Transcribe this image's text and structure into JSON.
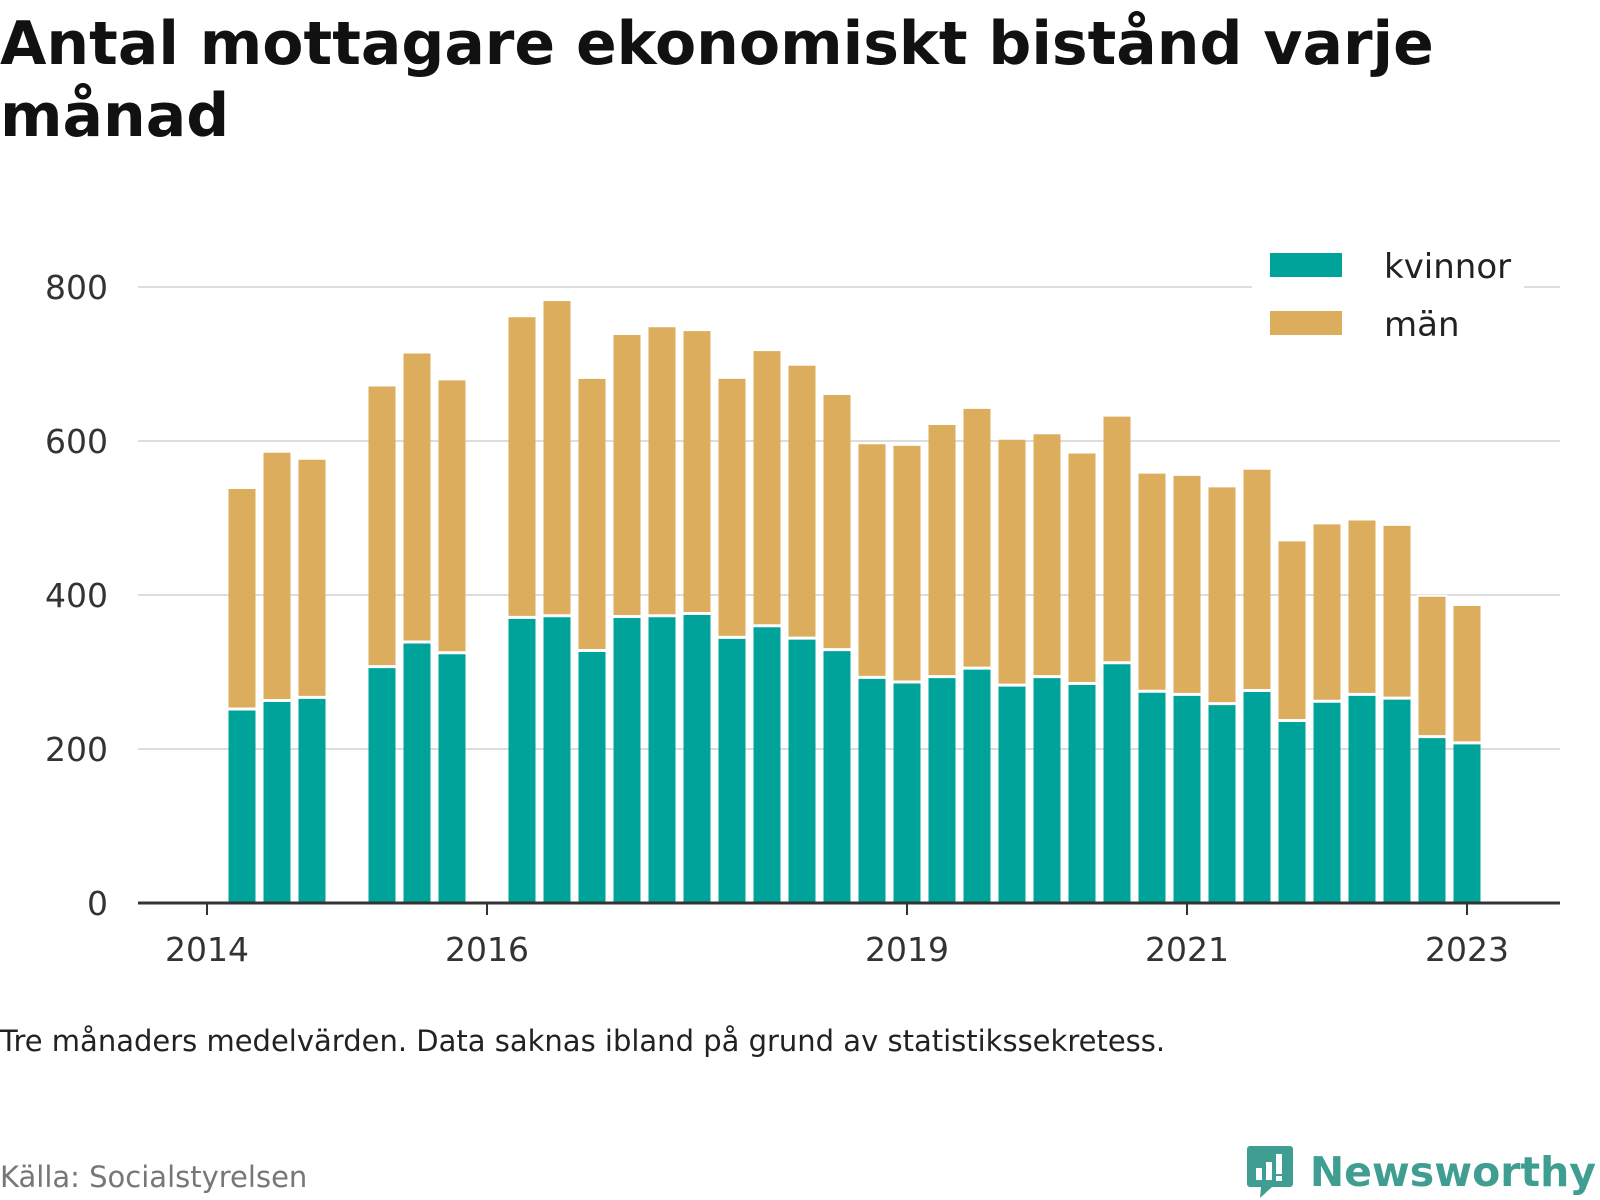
{
  "title": "Antal mottagare ekonomiskt bistånd varje månad",
  "note": "Tre månaders medelvärden. Data saknas ibland på grund av statistikssekretess.",
  "source": "Källa: Socialstyrelsen",
  "brand": {
    "name": "Newsworthy",
    "icon": "newsworthy-logo-icon",
    "color": "#3f9e91"
  },
  "colors": {
    "kvinnor": "#00a39a",
    "man": "#dbad5c",
    "grid": "#dddddd",
    "axis": "#333333"
  },
  "chart_data": {
    "type": "bar",
    "stacked": true,
    "ylim": [
      0,
      800
    ],
    "yticks": [
      0,
      200,
      400,
      600,
      800
    ],
    "grid": true,
    "legend_position": "top-right",
    "xticks": [
      {
        "label": "2014",
        "x": 2014.0
      },
      {
        "label": "2016",
        "x": 2016.0
      },
      {
        "label": "2019",
        "x": 2019.0
      },
      {
        "label": "2021",
        "x": 2021.0
      },
      {
        "label": "2023",
        "x": 2023.0
      }
    ],
    "x": [
      2014.25,
      2014.5,
      2014.75,
      2015.25,
      2015.5,
      2015.75,
      2016.25,
      2016.5,
      2016.75,
      2017.0,
      2017.25,
      2017.5,
      2017.75,
      2018.0,
      2018.25,
      2018.5,
      2018.75,
      2019.0,
      2019.25,
      2019.5,
      2019.75,
      2020.0,
      2020.25,
      2020.5,
      2020.75,
      2021.0,
      2021.25,
      2021.5,
      2021.75,
      2022.0,
      2022.25,
      2022.5,
      2022.75,
      2023.0
    ],
    "series": [
      {
        "name": "kvinnor",
        "color": "#00a39a",
        "values": [
          252,
          263,
          267,
          307,
          339,
          325,
          371,
          373,
          328,
          372,
          373,
          376,
          345,
          360,
          344,
          329,
          293,
          287,
          294,
          305,
          283,
          294,
          285,
          312,
          275,
          271,
          259,
          276,
          237,
          262,
          271,
          266,
          216,
          208
        ]
      },
      {
        "name": "män",
        "color": "#dbad5c",
        "values": [
          287,
          323,
          310,
          365,
          376,
          355,
          391,
          410,
          354,
          367,
          376,
          368,
          337,
          358,
          355,
          332,
          304,
          308,
          328,
          338,
          320,
          316,
          300,
          321,
          284,
          285,
          282,
          288,
          234,
          231,
          227,
          225,
          183,
          179
        ]
      }
    ]
  }
}
